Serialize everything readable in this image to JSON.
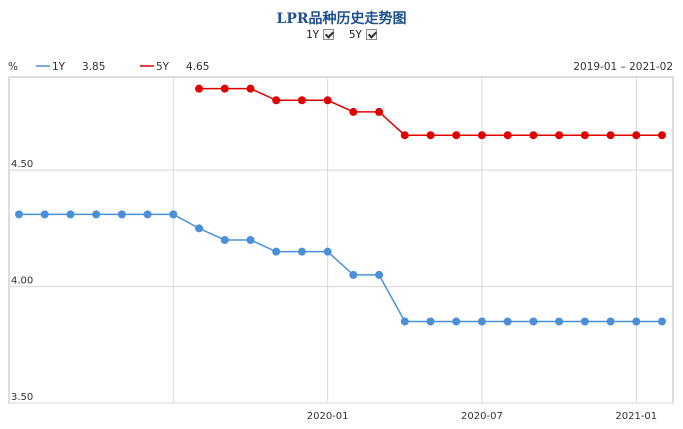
{
  "chart_data": {
    "type": "line",
    "title": "LPR品种历史走势图",
    "ylabel": "%",
    "date_range": "2019-01 – 2021-02",
    "ylim": [
      3.5,
      4.9
    ],
    "y_ticks": [
      "4.50",
      "4.00",
      "3.50"
    ],
    "x_ticks": [
      {
        "label": "2020-01",
        "x": "2020-01"
      },
      {
        "label": "2020-07",
        "x": "2020-07"
      },
      {
        "label": "2021-01",
        "x": "2021-01"
      }
    ],
    "x": [
      "2019-01",
      "2019-02",
      "2019-03",
      "2019-04",
      "2019-05",
      "2019-06",
      "2019-07",
      "2019-08",
      "2019-09",
      "2019-10",
      "2019-11",
      "2019-12",
      "2020-01",
      "2020-02",
      "2020-03",
      "2020-04",
      "2020-05",
      "2020-06",
      "2020-07",
      "2020-08",
      "2020-09",
      "2020-10",
      "2020-11",
      "2020-12",
      "2021-01",
      "2021-02"
    ],
    "grid": true,
    "legend_position": "top-left",
    "series": [
      {
        "name": "1Y",
        "latest": "3.85",
        "color": "#4a90d9",
        "values": [
          4.31,
          4.31,
          4.31,
          4.31,
          4.31,
          4.31,
          4.31,
          4.25,
          4.2,
          4.2,
          4.15,
          4.15,
          4.15,
          4.05,
          4.05,
          3.85,
          3.85,
          3.85,
          3.85,
          3.85,
          3.85,
          3.85,
          3.85,
          3.85,
          3.85,
          3.85
        ]
      },
      {
        "name": "5Y",
        "latest": "4.65",
        "color": "#e00000",
        "values": [
          null,
          null,
          null,
          null,
          null,
          null,
          null,
          4.85,
          4.85,
          4.85,
          4.8,
          4.8,
          4.8,
          4.75,
          4.75,
          4.65,
          4.65,
          4.65,
          4.65,
          4.65,
          4.65,
          4.65,
          4.65,
          4.65,
          4.65,
          4.65
        ]
      }
    ]
  },
  "toggles": [
    {
      "label": "1Y",
      "checked": true
    },
    {
      "label": "5Y",
      "checked": true
    }
  ]
}
